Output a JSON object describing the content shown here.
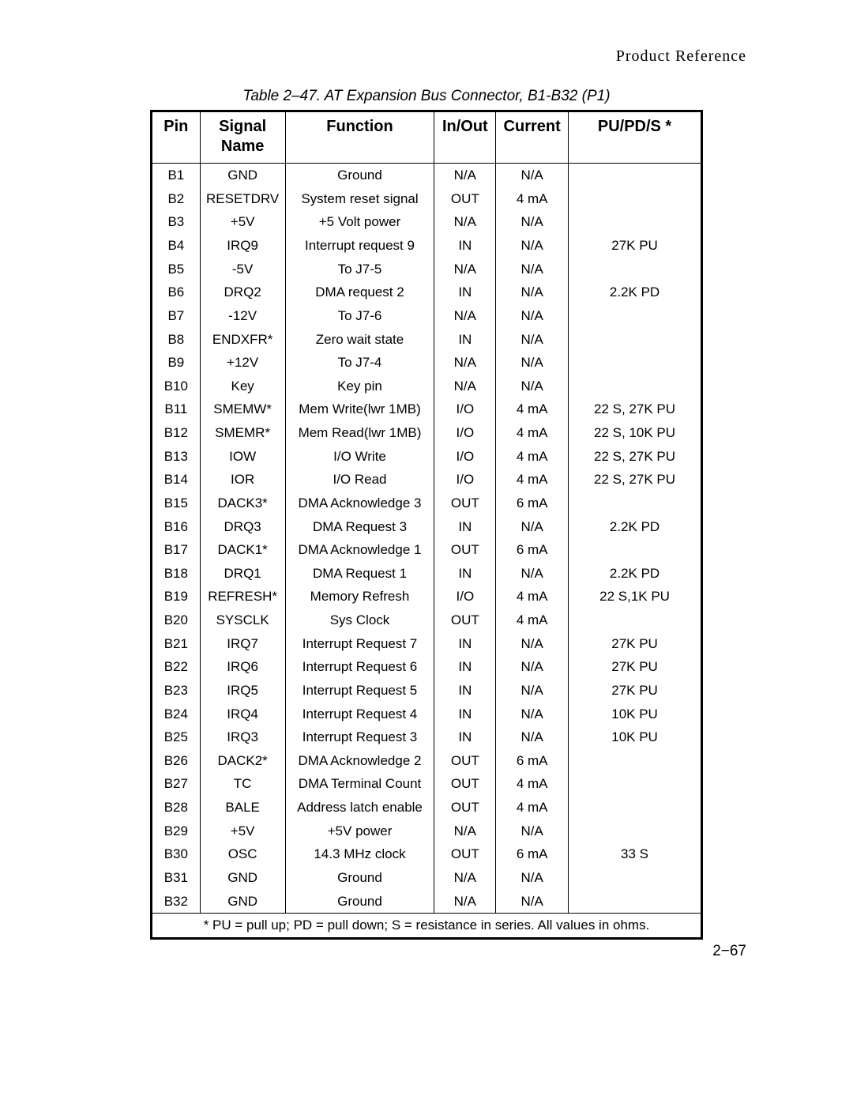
{
  "header": {
    "section": "Product Reference"
  },
  "table": {
    "caption": "Table 2–47. AT Expansion Bus Connector, B1-B32 (P1)",
    "columns": {
      "pin": "Pin",
      "signal": "Signal\nName",
      "function": "Function",
      "inout": "In/Out",
      "current": "Current",
      "pupds": "PU/PD/S *"
    },
    "rows": [
      {
        "pin": "B1",
        "signal": "GND",
        "function": "Ground",
        "inout": "N/A",
        "current": "N/A",
        "pupds": ""
      },
      {
        "pin": "B2",
        "signal": "RESETDRV",
        "function": "System reset signal",
        "inout": "OUT",
        "current": "4 mA",
        "pupds": ""
      },
      {
        "pin": "B3",
        "signal": "+5V",
        "function": "+5 Volt power",
        "inout": "N/A",
        "current": "N/A",
        "pupds": ""
      },
      {
        "pin": "B4",
        "signal": "IRQ9",
        "function": "Interrupt request 9",
        "inout": "IN",
        "current": "N/A",
        "pupds": "27K PU"
      },
      {
        "pin": "B5",
        "signal": "-5V",
        "function": "To J7-5",
        "inout": "N/A",
        "current": "N/A",
        "pupds": ""
      },
      {
        "pin": "B6",
        "signal": "DRQ2",
        "function": "DMA request 2",
        "inout": "IN",
        "current": "N/A",
        "pupds": "2.2K PD"
      },
      {
        "pin": "B7",
        "signal": "-12V",
        "function": "To J7-6",
        "inout": "N/A",
        "current": "N/A",
        "pupds": ""
      },
      {
        "pin": "B8",
        "signal": "ENDXFR*",
        "function": "Zero wait state",
        "inout": "IN",
        "current": "N/A",
        "pupds": ""
      },
      {
        "pin": "B9",
        "signal": "+12V",
        "function": "To J7-4",
        "inout": "N/A",
        "current": "N/A",
        "pupds": ""
      },
      {
        "pin": "B10",
        "signal": "Key",
        "function": "Key pin",
        "inout": "N/A",
        "current": "N/A",
        "pupds": ""
      },
      {
        "pin": "B11",
        "signal": "SMEMW*",
        "function": "Mem Write(lwr 1MB)",
        "inout": "I/O",
        "current": "4 mA",
        "pupds": "22 S, 27K PU"
      },
      {
        "pin": "B12",
        "signal": "SMEMR*",
        "function": "Mem Read(lwr 1MB)",
        "inout": "I/O",
        "current": "4 mA",
        "pupds": "22 S, 10K PU"
      },
      {
        "pin": "B13",
        "signal": "IOW",
        "function": "I/O Write",
        "inout": "I/O",
        "current": "4 mA",
        "pupds": "22 S, 27K PU"
      },
      {
        "pin": "B14",
        "signal": "IOR",
        "function": "I/O Read",
        "inout": "I/O",
        "current": "4 mA",
        "pupds": "22 S, 27K PU"
      },
      {
        "pin": "B15",
        "signal": "DACK3*",
        "function": "DMA Acknowledge 3",
        "inout": "OUT",
        "current": "6 mA",
        "pupds": ""
      },
      {
        "pin": "B16",
        "signal": "DRQ3",
        "function": "DMA Request 3",
        "inout": "IN",
        "current": "N/A",
        "pupds": "2.2K PD"
      },
      {
        "pin": "B17",
        "signal": "DACK1*",
        "function": "DMA Acknowledge 1",
        "inout": "OUT",
        "current": "6 mA",
        "pupds": ""
      },
      {
        "pin": "B18",
        "signal": "DRQ1",
        "function": "DMA Request 1",
        "inout": "IN",
        "current": "N/A",
        "pupds": "2.2K PD"
      },
      {
        "pin": "B19",
        "signal": "REFRESH*",
        "function": "Memory Refresh",
        "inout": "I/O",
        "current": "4 mA",
        "pupds": "22 S,1K PU"
      },
      {
        "pin": "B20",
        "signal": "SYSCLK",
        "function": "Sys Clock",
        "inout": "OUT",
        "current": "4 mA",
        "pupds": ""
      },
      {
        "pin": "B21",
        "signal": "IRQ7",
        "function": "Interrupt Request 7",
        "inout": "IN",
        "current": "N/A",
        "pupds": "27K PU"
      },
      {
        "pin": "B22",
        "signal": "IRQ6",
        "function": "Interrupt Request 6",
        "inout": "IN",
        "current": "N/A",
        "pupds": "27K PU"
      },
      {
        "pin": "B23",
        "signal": "IRQ5",
        "function": "Interrupt Request 5",
        "inout": "IN",
        "current": "N/A",
        "pupds": "27K PU"
      },
      {
        "pin": "B24",
        "signal": "IRQ4",
        "function": "Interrupt Request 4",
        "inout": "IN",
        "current": "N/A",
        "pupds": "10K PU"
      },
      {
        "pin": "B25",
        "signal": "IRQ3",
        "function": "Interrupt Request 3",
        "inout": "IN",
        "current": "N/A",
        "pupds": "10K PU"
      },
      {
        "pin": "B26",
        "signal": "DACK2*",
        "function": "DMA Acknowledge 2",
        "inout": "OUT",
        "current": "6 mA",
        "pupds": ""
      },
      {
        "pin": "B27",
        "signal": "TC",
        "function": "DMA Terminal Count",
        "inout": "OUT",
        "current": "4 mA",
        "pupds": ""
      },
      {
        "pin": "B28",
        "signal": "BALE",
        "function": "Address latch enable",
        "inout": "OUT",
        "current": "4 mA",
        "pupds": ""
      },
      {
        "pin": "B29",
        "signal": "+5V",
        "function": "+5V power",
        "inout": "N/A",
        "current": "N/A",
        "pupds": ""
      },
      {
        "pin": "B30",
        "signal": "OSC",
        "function": "14.3 MHz clock",
        "inout": "OUT",
        "current": "6 mA",
        "pupds": "33 S"
      },
      {
        "pin": "B31",
        "signal": "GND",
        "function": "Ground",
        "inout": "N/A",
        "current": "N/A",
        "pupds": ""
      },
      {
        "pin": "B32",
        "signal": "GND",
        "function": "Ground",
        "inout": "N/A",
        "current": "N/A",
        "pupds": ""
      }
    ],
    "footnote": "* PU = pull up; PD = pull down; S = resistance in series. All values in ohms."
  },
  "page_number": "2−67"
}
